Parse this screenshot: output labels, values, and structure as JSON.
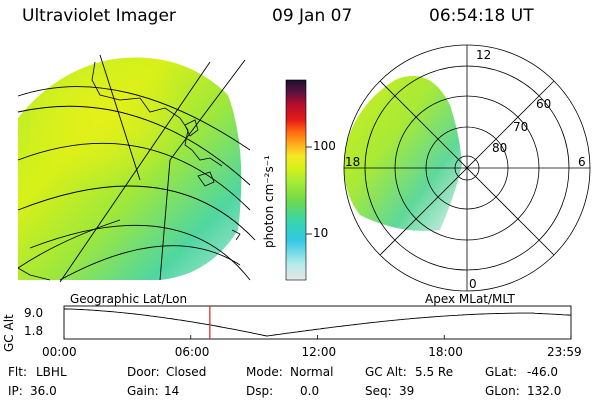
{
  "header": {
    "instrument": "Ultraviolet Imager",
    "date": "09 Jan 07",
    "time": "06:54:18 UT"
  },
  "colorbar": {
    "unit_label": "photon cm⁻²s⁻¹",
    "ticks": [
      "100",
      "10"
    ],
    "ticks_values": [
      100,
      10
    ],
    "range": [
      2,
      600
    ],
    "colors": [
      "#e6e6e6",
      "#b4ece9",
      "#31c8e6",
      "#73d84b",
      "#aaee33",
      "#d8f018",
      "#f6e825",
      "#ffaa1a",
      "#ff6a10",
      "#e51c17",
      "#b40c2d",
      "#5a1040",
      "#1a1030"
    ]
  },
  "geo_map": {
    "label": "Geographic Lat/Lon"
  },
  "polar_plot": {
    "label": "Apex MLat/MLT",
    "mlt_labels": {
      "top": "12",
      "left": "18",
      "right": "6",
      "bottom": "0"
    },
    "lat_labels": [
      "60",
      "70",
      "80"
    ]
  },
  "timeline": {
    "ylabel": "GC Alt",
    "ytick_top": "9.0",
    "ytick_bottom": "1.8",
    "xticks": [
      "00:00",
      "06:00",
      "12:00",
      "18:00",
      "23:59"
    ],
    "xticks_hours": [
      0,
      6,
      12,
      18,
      24
    ],
    "current_hour": 6.905
  },
  "status": {
    "flt_label": "Flt:",
    "flt_value": "LBHL",
    "ip_label": "IP:",
    "ip_value": "36.0",
    "door_label": "Door:",
    "door_value": "Closed",
    "gain_label": "Gain:",
    "gain_value": "14",
    "mode_label": "Mode:",
    "mode_value": "Normal",
    "dsp_label": "Dsp:",
    "dsp_value": "0.0",
    "gcalt_label": "GC Alt:",
    "gcalt_value": "5.5 Re",
    "seq_label": "Seq:",
    "seq_value": "39",
    "glat_label": "GLat:",
    "glat_value": "-46.0",
    "glon_label": "GLon:",
    "glon_value": "132.0"
  }
}
